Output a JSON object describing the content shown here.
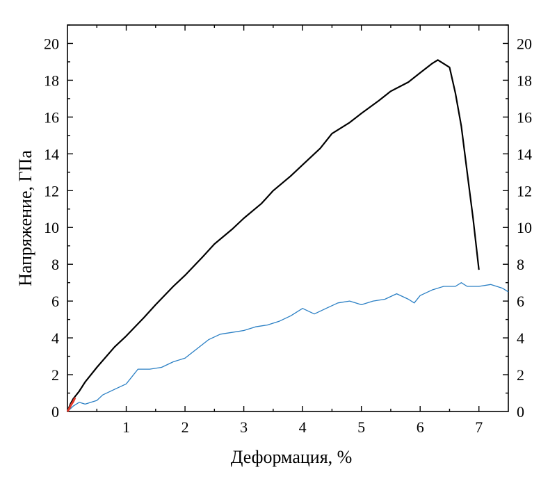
{
  "chart_data": {
    "type": "line",
    "xlabel": "Деформация, %",
    "ylabel": "Напряжение, ГПа",
    "xlim": [
      0,
      7.5
    ],
    "ylim": [
      0,
      21
    ],
    "x_ticks": [
      1,
      2,
      3,
      4,
      5,
      6,
      7
    ],
    "y_ticks": [
      0,
      2,
      4,
      6,
      8,
      10,
      12,
      14,
      16,
      18,
      20
    ],
    "right_axis_mirrored": true,
    "grid": false,
    "series": [
      {
        "color": "#000000",
        "x": [
          0,
          0.05,
          0.1,
          0.2,
          0.3,
          0.5,
          0.8,
          1.0,
          1.3,
          1.5,
          1.8,
          2.0,
          2.3,
          2.5,
          2.8,
          3.0,
          3.3,
          3.5,
          3.8,
          4.0,
          4.3,
          4.5,
          4.8,
          5.0,
          5.3,
          5.5,
          5.8,
          6.0,
          6.2,
          6.3,
          6.4,
          6.5,
          6.6,
          6.7,
          6.8,
          6.9,
          7.0
        ],
        "y": [
          0,
          0.4,
          0.7,
          1.1,
          1.6,
          2.4,
          3.5,
          4.1,
          5.1,
          5.8,
          6.8,
          7.4,
          8.4,
          9.1,
          9.9,
          10.5,
          11.3,
          12.0,
          12.8,
          13.4,
          14.3,
          15.1,
          15.7,
          16.2,
          16.9,
          17.4,
          17.9,
          18.4,
          18.9,
          19.1,
          18.9,
          18.7,
          17.3,
          15.5,
          13.0,
          10.5,
          7.7
        ]
      },
      {
        "color": "#2a7fc4",
        "x": [
          0,
          0.1,
          0.2,
          0.3,
          0.4,
          0.5,
          0.6,
          0.8,
          1.0,
          1.1,
          1.2,
          1.4,
          1.6,
          1.8,
          2.0,
          2.2,
          2.4,
          2.6,
          2.8,
          3.0,
          3.2,
          3.4,
          3.6,
          3.8,
          4.0,
          4.2,
          4.4,
          4.6,
          4.8,
          5.0,
          5.2,
          5.4,
          5.6,
          5.8,
          5.9,
          6.0,
          6.2,
          6.4,
          6.6,
          6.7,
          6.8,
          7.0,
          7.2,
          7.4,
          7.5
        ],
        "y": [
          0,
          0.3,
          0.5,
          0.4,
          0.5,
          0.6,
          0.9,
          1.2,
          1.5,
          1.9,
          2.3,
          2.3,
          2.4,
          2.7,
          2.9,
          3.4,
          3.9,
          4.2,
          4.3,
          4.4,
          4.6,
          4.7,
          4.9,
          5.2,
          5.6,
          5.3,
          5.6,
          5.9,
          6.0,
          5.8,
          6.0,
          6.1,
          6.4,
          6.1,
          5.9,
          6.3,
          6.6,
          6.8,
          6.8,
          7.0,
          6.8,
          6.8,
          6.9,
          6.7,
          6.5
        ]
      },
      {
        "color": "#e0382a",
        "x": [
          0,
          0.03,
          0.06,
          0.1,
          0.13
        ],
        "y": [
          0,
          0.15,
          0.35,
          0.55,
          0.75
        ]
      }
    ]
  }
}
